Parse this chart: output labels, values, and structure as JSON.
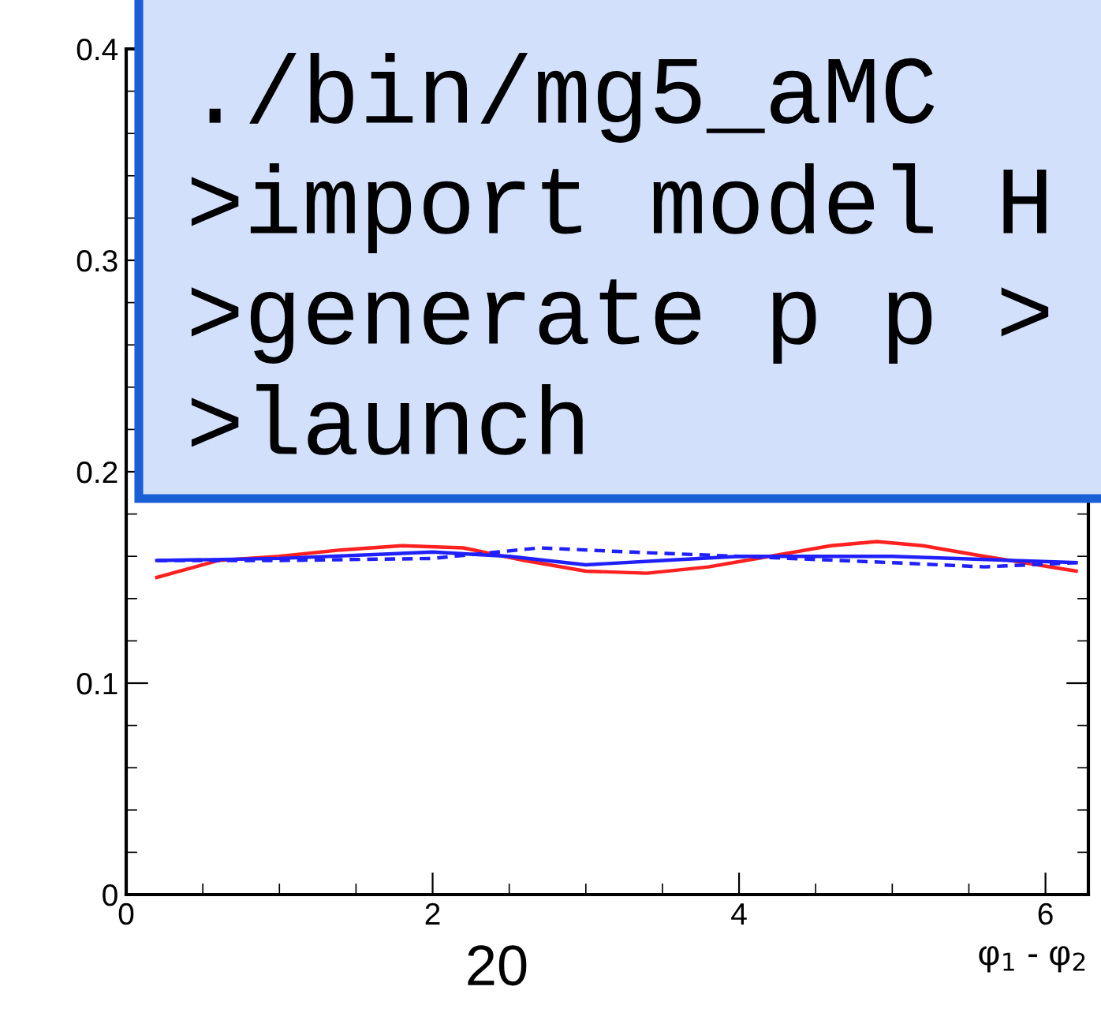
{
  "chart_data": {
    "type": "line",
    "xlabel": "φ$_{1}$ - φ$_{2}$",
    "xlim": [
      0,
      6.28
    ],
    "xticks": [
      0,
      2,
      4,
      6
    ],
    "ylim": [
      0,
      0.4
    ],
    "yticks": [
      0,
      0.1,
      0.2,
      0.3,
      0.4
    ],
    "grid": false,
    "legend": false,
    "series": [
      {
        "color": "#ff2020",
        "line_style": "solid",
        "x": [
          0.2,
          0.6,
          1.0,
          1.4,
          1.8,
          2.2,
          2.6,
          3.0,
          3.4,
          3.8,
          4.2,
          4.6,
          4.9,
          5.2,
          5.6,
          6.2
        ],
        "values": [
          0.15,
          0.158,
          0.16,
          0.163,
          0.165,
          0.164,
          0.158,
          0.153,
          0.152,
          0.155,
          0.16,
          0.165,
          0.167,
          0.165,
          0.16,
          0.153
        ]
      },
      {
        "color": "#2020ff",
        "line_style": "solid",
        "x": [
          0.2,
          1.0,
          2.0,
          2.5,
          3.0,
          3.5,
          4.0,
          5.0,
          6.2
        ],
        "values": [
          0.158,
          0.159,
          0.162,
          0.16,
          0.156,
          0.158,
          0.16,
          0.16,
          0.157
        ]
      },
      {
        "color": "#2020ff",
        "line_style": "dashed",
        "x": [
          0.2,
          1.0,
          2.0,
          2.7,
          3.3,
          4.0,
          5.0,
          5.6,
          6.2
        ],
        "values": [
          0.158,
          0.158,
          0.159,
          0.164,
          0.162,
          0.16,
          0.157,
          0.155,
          0.157
        ]
      }
    ],
    "annotations": [
      "./bin/mg5_aMC",
      ">import model H",
      ">generate p p >",
      ">launch",
      "20"
    ]
  }
}
